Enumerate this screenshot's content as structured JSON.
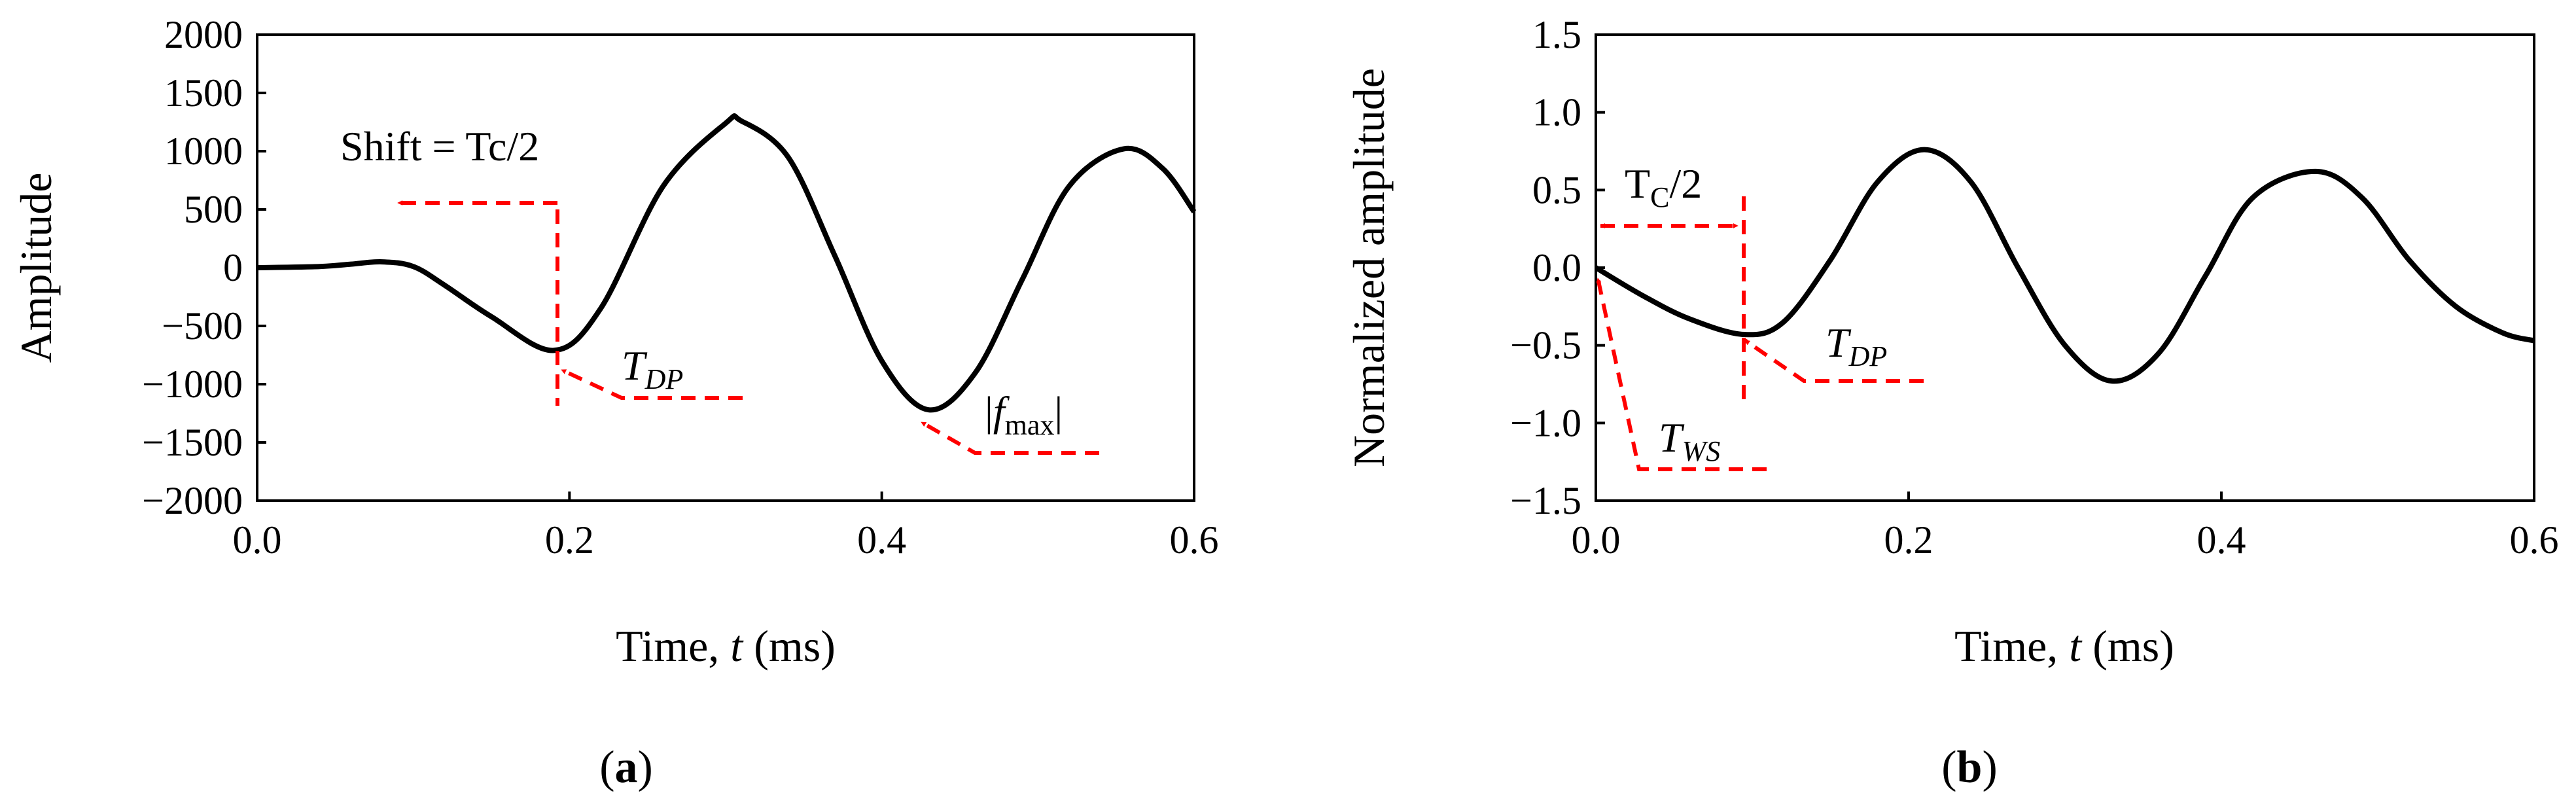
{
  "chart_data": [
    {
      "type": "line",
      "panel": "a",
      "caption": {
        "open": "(",
        "letter": "a",
        "close": ")"
      },
      "xlabel": {
        "prefix": "Time, ",
        "var": "t",
        "suffix": " (ms)"
      },
      "ylabel": "Amplitude",
      "xlim": [
        0.0,
        0.6
      ],
      "ylim": [
        -2000,
        2000
      ],
      "xticks": [
        0.0,
        0.2,
        0.4,
        0.6
      ],
      "xtick_labels": [
        "0.0",
        "0.2",
        "0.4",
        "0.6"
      ],
      "yticks": [
        2000,
        1500,
        1000,
        500,
        0,
        -500,
        -1000,
        -1500,
        -2000
      ],
      "ytick_labels": [
        "2000",
        "1500",
        "1000",
        "500",
        "0",
        "−500",
        "−1000",
        "−1500",
        "−2000"
      ],
      "series": [
        {
          "name": "signal",
          "x": [
            0.0,
            0.04,
            0.06,
            0.08,
            0.1,
            0.12,
            0.15,
            0.19,
            0.22,
            0.26,
            0.3,
            0.31,
            0.34,
            0.37,
            0.4,
            0.43,
            0.46,
            0.49,
            0.52,
            0.555,
            0.58,
            0.6
          ],
          "y": [
            0,
            10,
            30,
            50,
            10,
            -150,
            -420,
            -710,
            -350,
            700,
            1240,
            1260,
            950,
            100,
            -800,
            -1220,
            -900,
            -100,
            700,
            1020,
            850,
            480
          ]
        }
      ],
      "annotations": {
        "shift": {
          "text": "Shift = Tc/2",
          "x": 0.19,
          "arrow_to_x": 0.1,
          "arrow_y": 570
        },
        "tdp": {
          "base": "T",
          "sub": "DP",
          "point_x": 0.19,
          "point_y": -710
        },
        "fmax": {
          "bar_left": "|",
          "base": "f",
          "sub": "max",
          "bar_right": "|",
          "point_x": 0.43,
          "point_y": -1220
        }
      }
    },
    {
      "type": "line",
      "panel": "b",
      "caption": {
        "open": "(",
        "letter": "b",
        "close": ")"
      },
      "xlabel": {
        "prefix": "Time, ",
        "var": "t",
        "suffix": " (ms)"
      },
      "ylabel": "Normalized amplitude",
      "xlim": [
        0.0,
        0.6
      ],
      "ylim": [
        -1.5,
        1.5
      ],
      "xticks": [
        0.0,
        0.2,
        0.4,
        0.6
      ],
      "xtick_labels": [
        "0.0",
        "0.2",
        "0.4",
        "0.6"
      ],
      "yticks": [
        1.5,
        1.0,
        0.5,
        0.0,
        -0.5,
        -1.0,
        -1.5
      ],
      "ytick_labels": [
        "1.5",
        "1.0",
        "0.5",
        "0.0",
        "−0.5",
        "−1.0",
        "−1.5"
      ],
      "series": [
        {
          "name": "signal",
          "x": [
            0.0,
            0.03,
            0.06,
            0.095,
            0.12,
            0.15,
            0.18,
            0.21,
            0.24,
            0.27,
            0.3,
            0.33,
            0.36,
            0.39,
            0.42,
            0.46,
            0.49,
            0.52,
            0.55,
            0.58,
            0.6
          ],
          "y": [
            0.0,
            -0.18,
            -0.33,
            -0.43,
            -0.35,
            0.05,
            0.55,
            0.76,
            0.55,
            0.0,
            -0.5,
            -0.73,
            -0.55,
            -0.05,
            0.45,
            0.62,
            0.45,
            0.05,
            -0.25,
            -0.42,
            -0.47
          ]
        }
      ],
      "annotations": {
        "tc": {
          "base": "T",
          "sub": "C",
          "rest": "/2",
          "from_x": 0.0,
          "to_x": 0.095,
          "y": 0.27
        },
        "tdp": {
          "base": "T",
          "sub": "DP",
          "point_x": 0.095,
          "point_y": -0.43
        },
        "tws": {
          "base": "T",
          "sub": "WS",
          "point_x": 0.0,
          "point_y": 0.0
        }
      }
    }
  ],
  "colors": {
    "line": "#000000",
    "annotation": "#ff0000",
    "axes": "#000000"
  }
}
